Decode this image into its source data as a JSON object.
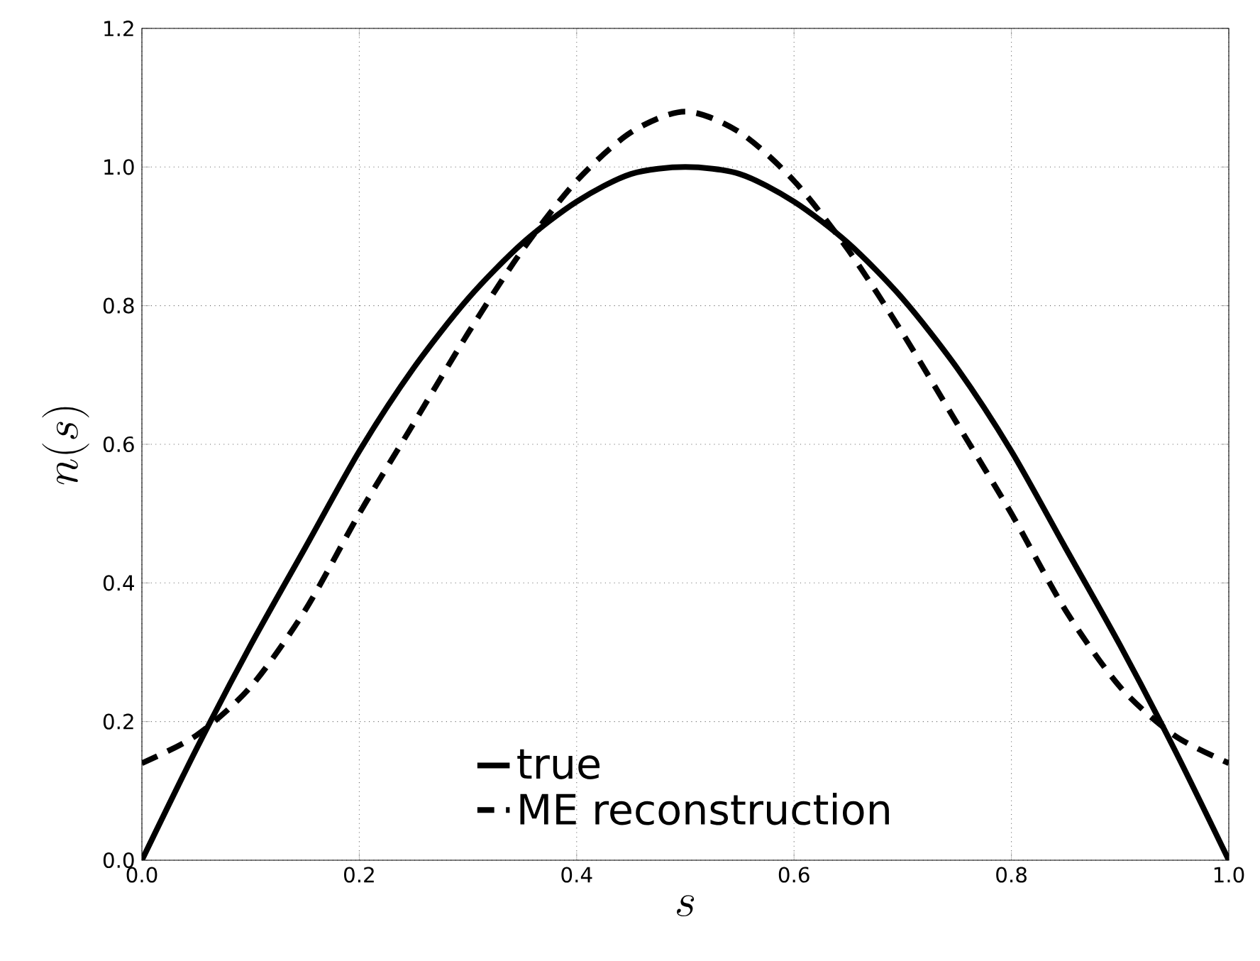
{
  "chart_data": {
    "type": "line",
    "xlabel": "s",
    "ylabel": "n(s)",
    "x": [
      0,
      0.05,
      0.1,
      0.15,
      0.2,
      0.25,
      0.3,
      0.35,
      0.4,
      0.45,
      0.5,
      0.55,
      0.6,
      0.65,
      0.7,
      0.75,
      0.8,
      0.85,
      0.9,
      0.95,
      1.0
    ],
    "series": [
      {
        "name": "true",
        "color": "#000000",
        "line_style": "solid",
        "values": [
          0,
          0.16,
          0.31,
          0.45,
          0.59,
          0.71,
          0.81,
          0.89,
          0.95,
          0.99,
          1.0,
          0.99,
          0.95,
          0.89,
          0.81,
          0.71,
          0.59,
          0.45,
          0.31,
          0.16,
          0
        ]
      },
      {
        "name": "ME reconstruction",
        "color": "#000000",
        "line_style": "dashed",
        "values": [
          0.14,
          0.18,
          0.25,
          0.36,
          0.5,
          0.63,
          0.76,
          0.88,
          0.98,
          1.05,
          1.08,
          1.05,
          0.98,
          0.88,
          0.76,
          0.63,
          0.5,
          0.36,
          0.25,
          0.18,
          0.14
        ]
      }
    ],
    "xlim": [
      0,
      1
    ],
    "ylim": [
      0,
      1.2
    ],
    "xticks": [
      {
        "value": 0,
        "label": "0.0"
      },
      {
        "value": 0.2,
        "label": "0.2"
      },
      {
        "value": 0.4,
        "label": "0.4"
      },
      {
        "value": 0.6,
        "label": "0.6"
      },
      {
        "value": 0.8,
        "label": "0.8"
      },
      {
        "value": 1.0,
        "label": "1.0"
      }
    ],
    "yticks": [
      {
        "value": 0,
        "label": "0.0"
      },
      {
        "value": 0.2,
        "label": "0.2"
      },
      {
        "value": 0.4,
        "label": "0.4"
      },
      {
        "value": 0.6,
        "label": "0.6"
      },
      {
        "value": 0.8,
        "label": "0.8"
      },
      {
        "value": 1.0,
        "label": "1.0"
      },
      {
        "value": 1.2,
        "label": "1.2"
      }
    ],
    "grid": true,
    "legend": "bottom"
  }
}
